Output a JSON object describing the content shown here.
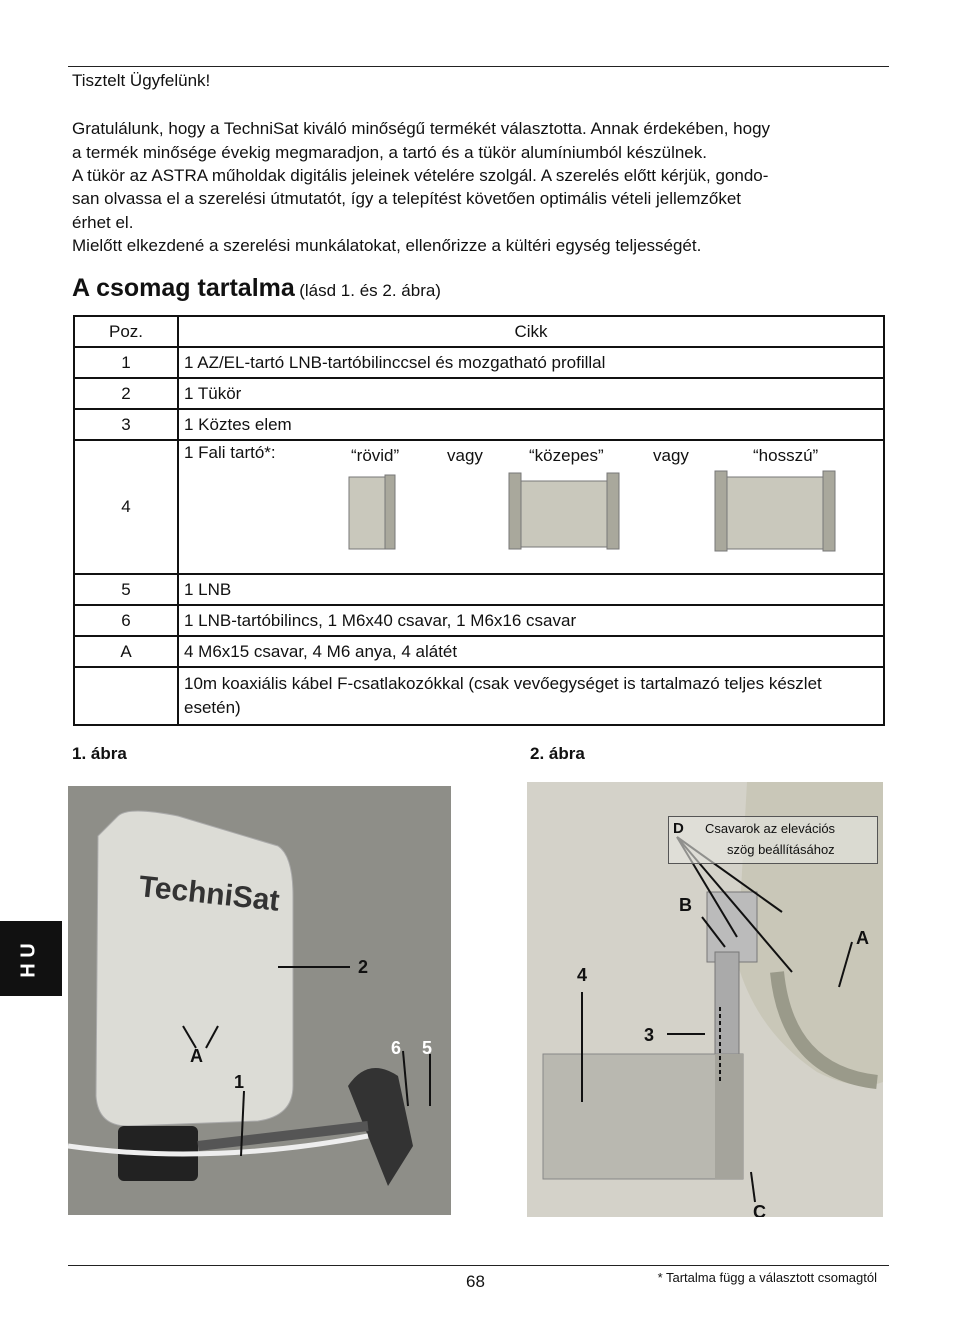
{
  "greeting": "Tisztelt Ügyfelünk!",
  "intro_lines": [
    "Gratulálunk, hogy a TechniSat kiváló minőségű termékét választotta. Annak érdekében, hogy",
    "a termék minősége évekig megmaradjon, a tartó és a tükör alumíniumból készülnek.",
    "A tükör az ASTRA műholdak digitális jeleinek vételére szolgál. A szerelés előtt kérjük, gondo-",
    "san olvassa el a szerelési útmutatót, így a telepítést követően optimális vételi jellemzőket",
    "érhet el.",
    "Mielőtt elkezdené a szerelési munkálatokat, ellenőrizze a kültéri egység teljességét."
  ],
  "section": {
    "title": "A csomag tartalma",
    "note": "(lásd 1. és 2. ábra)"
  },
  "table": {
    "header": [
      "Poz.",
      "Cikk"
    ],
    "rows": [
      {
        "pos": "1",
        "item": "1 AZ/EL-tartó LNB-tartóbilinccsel és mozgatható profillal"
      },
      {
        "pos": "2",
        "item": "1 Tükör"
      },
      {
        "pos": "3",
        "item": "1 Köztes elem"
      },
      {
        "pos": "4",
        "item": "1 Fali tartó*:",
        "options": [
          "“rövid”",
          "vagy",
          "“közepes”",
          "vagy",
          "“hosszú”"
        ]
      },
      {
        "pos": "5",
        "item": "1 LNB"
      },
      {
        "pos": "6",
        "item": "1 LNB-tartóbilincs, 1 M6x40 csavar, 1 M6x16 csavar"
      },
      {
        "pos": "A",
        "item": "4 M6x15 csavar, 4 M6 anya, 4 alátét"
      },
      {
        "item": "10m koaxiális kábel F-csatlakozókkal (csak vevőegységet is tartalmazó teljes készlet esetén)"
      }
    ]
  },
  "figures": [
    {
      "caption": "1. ábra",
      "labels": [
        "2",
        "6",
        "5",
        "A",
        "1"
      ]
    },
    {
      "caption": "2. ábra",
      "callout_letter": "D",
      "callout_text": [
        "Csavarok az elevációs",
        "szög beállításához"
      ],
      "labels": [
        "B",
        "A",
        "4",
        "3",
        "C"
      ]
    }
  ],
  "side_tab": "H U",
  "footer": {
    "page": "68",
    "note": "* Tartalma függ a választott csomagtól"
  }
}
